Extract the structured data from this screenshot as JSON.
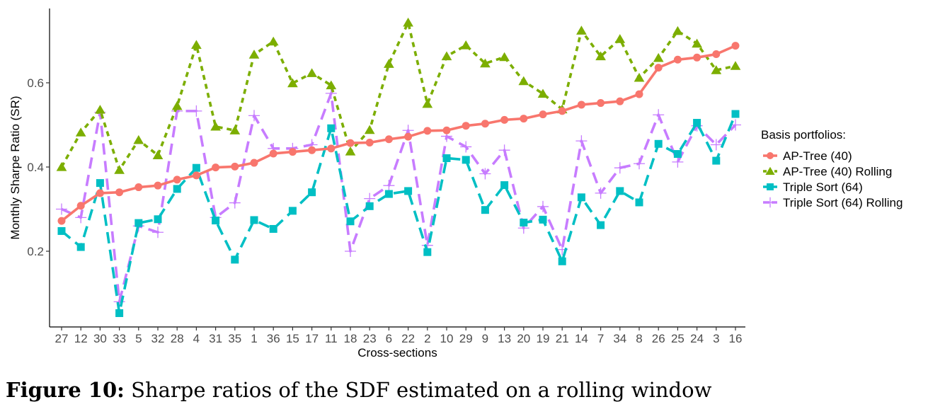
{
  "caption": {
    "label": "Figure 10:",
    "text": "Sharpe ratios of the SDF estimated on a rolling window"
  },
  "chart_data": {
    "type": "line",
    "title": "",
    "xlabel": "Cross-sections",
    "ylabel": "Monthly Sharpe Ratio (SR)",
    "ylim": [
      0.0,
      0.76
    ],
    "yticks": [
      "0.2",
      "0.4",
      "0.6"
    ],
    "grid": false,
    "legend_position": "right",
    "legend_title": "Basis portfolios:",
    "categories": [
      "27",
      "12",
      "30",
      "33",
      "5",
      "32",
      "28",
      "4",
      "31",
      "35",
      "1",
      "36",
      "15",
      "17",
      "11",
      "18",
      "23",
      "6",
      "22",
      "2",
      "10",
      "29",
      "9",
      "13",
      "20",
      "19",
      "21",
      "14",
      "7",
      "34",
      "8",
      "26",
      "25",
      "24",
      "3",
      "16"
    ],
    "series": [
      {
        "name": "AP-Tree (40)",
        "color": "#F8766D",
        "marker": "circle",
        "dash": "solid",
        "values": [
          0.272,
          0.308,
          0.338,
          0.34,
          0.352,
          0.356,
          0.37,
          0.38,
          0.399,
          0.401,
          0.41,
          0.432,
          0.436,
          0.44,
          0.444,
          0.457,
          0.458,
          0.466,
          0.472,
          0.486,
          0.487,
          0.498,
          0.503,
          0.512,
          0.515,
          0.525,
          0.533,
          0.548,
          0.552,
          0.556,
          0.573,
          0.636,
          0.655,
          0.66,
          0.668,
          0.688
        ]
      },
      {
        "name": "AP-Tree (40) Rolling",
        "color": "#7CAE00",
        "marker": "triangle",
        "dash": "short",
        "values": [
          0.4,
          0.482,
          0.536,
          0.393,
          0.464,
          0.428,
          0.545,
          0.69,
          0.496,
          0.487,
          0.667,
          0.698,
          0.599,
          0.623,
          0.594,
          0.437,
          0.488,
          0.645,
          0.743,
          0.55,
          0.663,
          0.689,
          0.646,
          0.661,
          0.604,
          0.574,
          0.537,
          0.724,
          0.663,
          0.704,
          0.612,
          0.659,
          0.723,
          0.693,
          0.63,
          0.64
        ]
      },
      {
        "name": "Triple Sort (64)",
        "color": "#00BFC4",
        "marker": "square",
        "dash": "long",
        "values": [
          0.248,
          0.21,
          0.362,
          0.053,
          0.267,
          0.276,
          0.348,
          0.398,
          0.273,
          0.18,
          0.274,
          0.253,
          0.296,
          0.34,
          0.492,
          0.271,
          0.307,
          0.336,
          0.343,
          0.198,
          0.421,
          0.417,
          0.298,
          0.357,
          0.268,
          0.275,
          0.176,
          0.328,
          0.262,
          0.343,
          0.316,
          0.455,
          0.431,
          0.505,
          0.415,
          0.526
        ]
      },
      {
        "name": "Triple Sort (64) Rolling",
        "color": "#C77CFF",
        "marker": "plus",
        "dash": "long",
        "values": [
          0.3,
          0.28,
          0.53,
          0.08,
          0.26,
          0.245,
          0.533,
          0.533,
          0.28,
          0.315,
          0.522,
          0.444,
          0.444,
          0.453,
          0.575,
          0.2,
          0.325,
          0.356,
          0.487,
          0.214,
          0.473,
          0.448,
          0.384,
          0.44,
          0.255,
          0.306,
          0.204,
          0.462,
          0.338,
          0.398,
          0.408,
          0.524,
          0.412,
          0.498,
          0.453,
          0.5
        ]
      }
    ]
  }
}
